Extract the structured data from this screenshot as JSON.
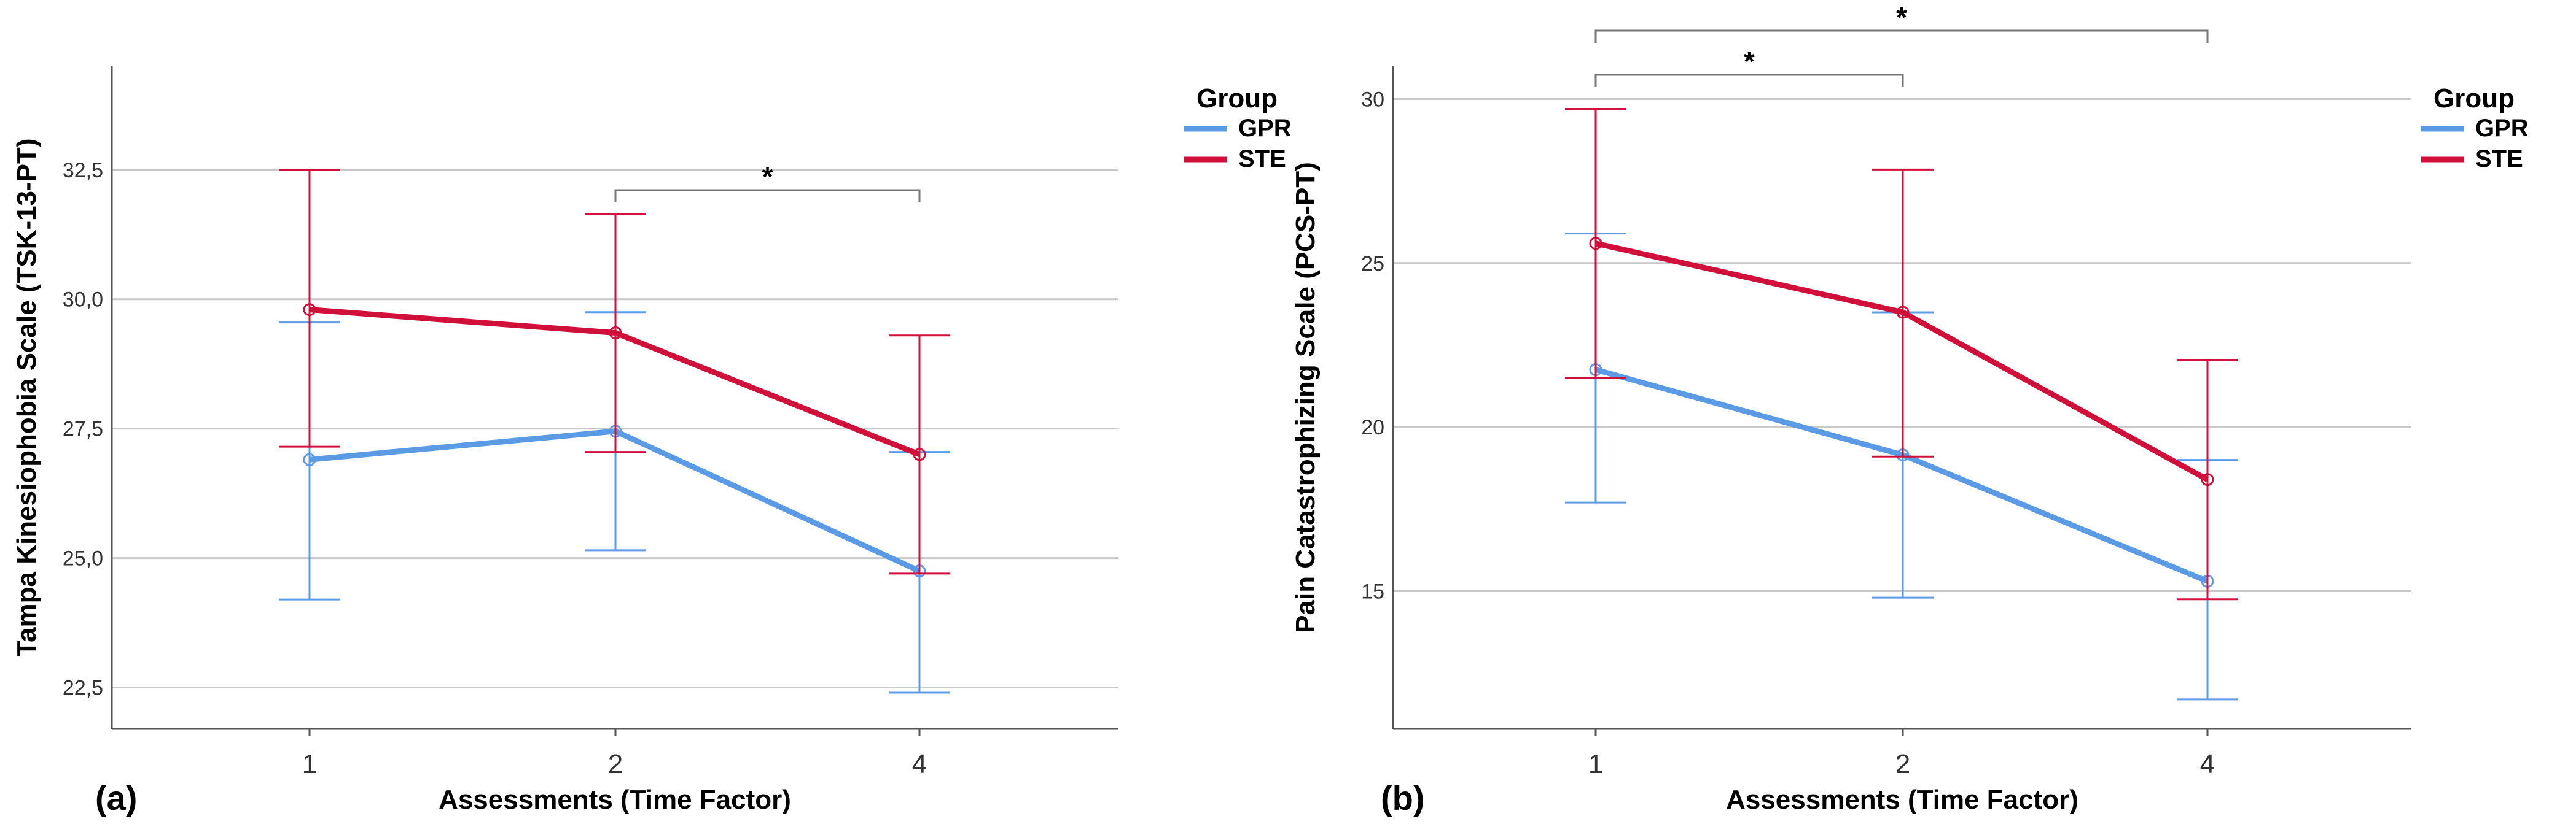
{
  "chart_data": [
    {
      "type": "line",
      "panel_label": "(a)",
      "xlabel": "Assessments (Time Factor)",
      "ylabel": "Tampa Kinesiophobia Scale (TSK-13-PT)",
      "categories": [
        "1",
        "2",
        "4"
      ],
      "ylim": [
        21.7,
        34.5
      ],
      "yticks": [
        22.5,
        25.0,
        27.5,
        30.0,
        32.5
      ],
      "ytick_labels": [
        "22,5",
        "25,0",
        "27,5",
        "30,0",
        "32,5"
      ],
      "grid": true,
      "legend": {
        "title": "Group",
        "position": "right"
      },
      "series": [
        {
          "name": "GPR",
          "color": "#5B9BE6",
          "values": [
            26.9,
            27.45,
            24.75
          ],
          "err_low": [
            24.2,
            25.15,
            22.4
          ],
          "err_high": [
            29.55,
            29.75,
            27.05
          ]
        },
        {
          "name": "STE",
          "color": "#D0103A",
          "values": [
            29.8,
            29.35,
            27.0
          ],
          "err_low": [
            27.15,
            27.05,
            24.7
          ],
          "err_high": [
            32.5,
            31.65,
            29.3
          ]
        }
      ],
      "significance": [
        {
          "from": "2",
          "to": "4",
          "label": "*"
        }
      ]
    },
    {
      "type": "line",
      "panel_label": "(b)",
      "xlabel": "Assessments (Time Factor)",
      "ylabel": "Pain Catastrophizing Scale (PCS-PT)",
      "categories": [
        "1",
        "2",
        "4"
      ],
      "ylim": [
        10.8,
        31.0
      ],
      "yticks": [
        15,
        20,
        25,
        30
      ],
      "ytick_labels": [
        "15",
        "20",
        "25",
        "30"
      ],
      "grid": true,
      "legend": {
        "title": "Group",
        "position": "right"
      },
      "series": [
        {
          "name": "GPR",
          "color": "#5B9BE6",
          "values": [
            21.75,
            19.15,
            15.3
          ],
          "err_low": [
            17.7,
            14.8,
            11.7
          ],
          "err_high": [
            25.9,
            23.5,
            19.0
          ]
        },
        {
          "name": "STE",
          "color": "#D0103A",
          "values": [
            25.6,
            23.5,
            18.4
          ],
          "err_low": [
            21.5,
            19.1,
            14.75
          ],
          "err_high": [
            29.7,
            27.85,
            22.05
          ]
        }
      ],
      "significance": [
        {
          "from": "1",
          "to": "2",
          "label": "*"
        },
        {
          "from": "1",
          "to": "4",
          "label": "*"
        }
      ]
    }
  ]
}
